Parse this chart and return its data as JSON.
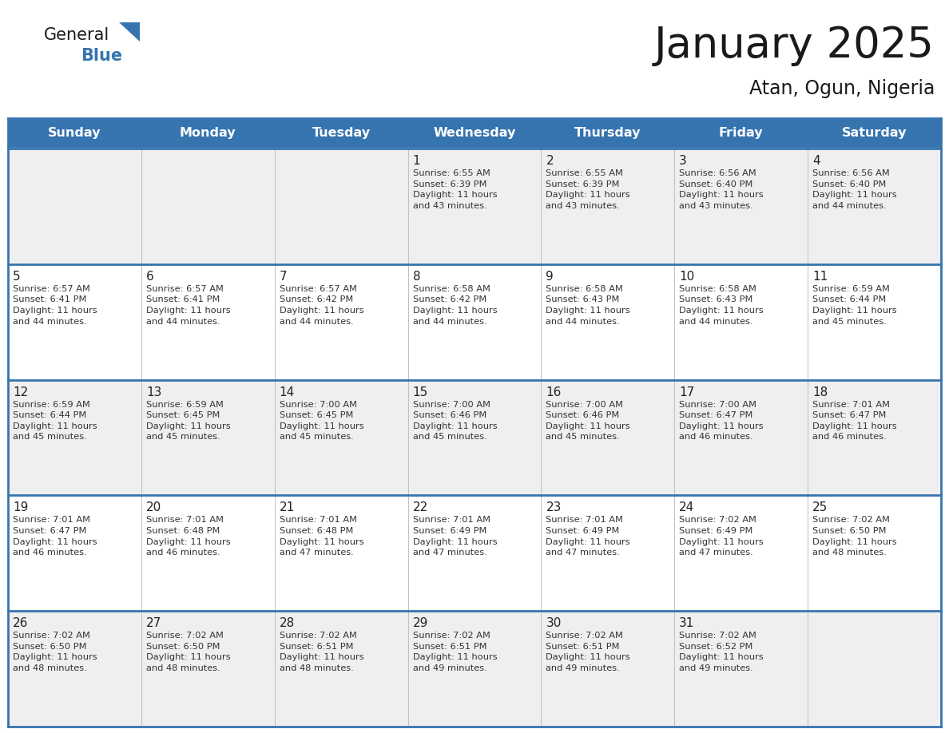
{
  "title": "January 2025",
  "subtitle": "Atan, Ogun, Nigeria",
  "header_color": "#3674B0",
  "header_text_color": "#FFFFFF",
  "row_bg_odd": "#EFEFEF",
  "row_bg_even": "#FFFFFF",
  "border_color": "#3674B0",
  "text_color": "#333333",
  "days_of_week": [
    "Sunday",
    "Monday",
    "Tuesday",
    "Wednesday",
    "Thursday",
    "Friday",
    "Saturday"
  ],
  "calendar_data": [
    [
      {
        "day": "",
        "info": ""
      },
      {
        "day": "",
        "info": ""
      },
      {
        "day": "",
        "info": ""
      },
      {
        "day": "1",
        "info": "Sunrise: 6:55 AM\nSunset: 6:39 PM\nDaylight: 11 hours\nand 43 minutes."
      },
      {
        "day": "2",
        "info": "Sunrise: 6:55 AM\nSunset: 6:39 PM\nDaylight: 11 hours\nand 43 minutes."
      },
      {
        "day": "3",
        "info": "Sunrise: 6:56 AM\nSunset: 6:40 PM\nDaylight: 11 hours\nand 43 minutes."
      },
      {
        "day": "4",
        "info": "Sunrise: 6:56 AM\nSunset: 6:40 PM\nDaylight: 11 hours\nand 44 minutes."
      }
    ],
    [
      {
        "day": "5",
        "info": "Sunrise: 6:57 AM\nSunset: 6:41 PM\nDaylight: 11 hours\nand 44 minutes."
      },
      {
        "day": "6",
        "info": "Sunrise: 6:57 AM\nSunset: 6:41 PM\nDaylight: 11 hours\nand 44 minutes."
      },
      {
        "day": "7",
        "info": "Sunrise: 6:57 AM\nSunset: 6:42 PM\nDaylight: 11 hours\nand 44 minutes."
      },
      {
        "day": "8",
        "info": "Sunrise: 6:58 AM\nSunset: 6:42 PM\nDaylight: 11 hours\nand 44 minutes."
      },
      {
        "day": "9",
        "info": "Sunrise: 6:58 AM\nSunset: 6:43 PM\nDaylight: 11 hours\nand 44 minutes."
      },
      {
        "day": "10",
        "info": "Sunrise: 6:58 AM\nSunset: 6:43 PM\nDaylight: 11 hours\nand 44 minutes."
      },
      {
        "day": "11",
        "info": "Sunrise: 6:59 AM\nSunset: 6:44 PM\nDaylight: 11 hours\nand 45 minutes."
      }
    ],
    [
      {
        "day": "12",
        "info": "Sunrise: 6:59 AM\nSunset: 6:44 PM\nDaylight: 11 hours\nand 45 minutes."
      },
      {
        "day": "13",
        "info": "Sunrise: 6:59 AM\nSunset: 6:45 PM\nDaylight: 11 hours\nand 45 minutes."
      },
      {
        "day": "14",
        "info": "Sunrise: 7:00 AM\nSunset: 6:45 PM\nDaylight: 11 hours\nand 45 minutes."
      },
      {
        "day": "15",
        "info": "Sunrise: 7:00 AM\nSunset: 6:46 PM\nDaylight: 11 hours\nand 45 minutes."
      },
      {
        "day": "16",
        "info": "Sunrise: 7:00 AM\nSunset: 6:46 PM\nDaylight: 11 hours\nand 45 minutes."
      },
      {
        "day": "17",
        "info": "Sunrise: 7:00 AM\nSunset: 6:47 PM\nDaylight: 11 hours\nand 46 minutes."
      },
      {
        "day": "18",
        "info": "Sunrise: 7:01 AM\nSunset: 6:47 PM\nDaylight: 11 hours\nand 46 minutes."
      }
    ],
    [
      {
        "day": "19",
        "info": "Sunrise: 7:01 AM\nSunset: 6:47 PM\nDaylight: 11 hours\nand 46 minutes."
      },
      {
        "day": "20",
        "info": "Sunrise: 7:01 AM\nSunset: 6:48 PM\nDaylight: 11 hours\nand 46 minutes."
      },
      {
        "day": "21",
        "info": "Sunrise: 7:01 AM\nSunset: 6:48 PM\nDaylight: 11 hours\nand 47 minutes."
      },
      {
        "day": "22",
        "info": "Sunrise: 7:01 AM\nSunset: 6:49 PM\nDaylight: 11 hours\nand 47 minutes."
      },
      {
        "day": "23",
        "info": "Sunrise: 7:01 AM\nSunset: 6:49 PM\nDaylight: 11 hours\nand 47 minutes."
      },
      {
        "day": "24",
        "info": "Sunrise: 7:02 AM\nSunset: 6:49 PM\nDaylight: 11 hours\nand 47 minutes."
      },
      {
        "day": "25",
        "info": "Sunrise: 7:02 AM\nSunset: 6:50 PM\nDaylight: 11 hours\nand 48 minutes."
      }
    ],
    [
      {
        "day": "26",
        "info": "Sunrise: 7:02 AM\nSunset: 6:50 PM\nDaylight: 11 hours\nand 48 minutes."
      },
      {
        "day": "27",
        "info": "Sunrise: 7:02 AM\nSunset: 6:50 PM\nDaylight: 11 hours\nand 48 minutes."
      },
      {
        "day": "28",
        "info": "Sunrise: 7:02 AM\nSunset: 6:51 PM\nDaylight: 11 hours\nand 48 minutes."
      },
      {
        "day": "29",
        "info": "Sunrise: 7:02 AM\nSunset: 6:51 PM\nDaylight: 11 hours\nand 49 minutes."
      },
      {
        "day": "30",
        "info": "Sunrise: 7:02 AM\nSunset: 6:51 PM\nDaylight: 11 hours\nand 49 minutes."
      },
      {
        "day": "31",
        "info": "Sunrise: 7:02 AM\nSunset: 6:52 PM\nDaylight: 11 hours\nand 49 minutes."
      },
      {
        "day": "",
        "info": ""
      }
    ]
  ],
  "logo_general_color": "#1a1a1a",
  "logo_blue_color": "#3674B0",
  "logo_triangle_color": "#3674B0"
}
